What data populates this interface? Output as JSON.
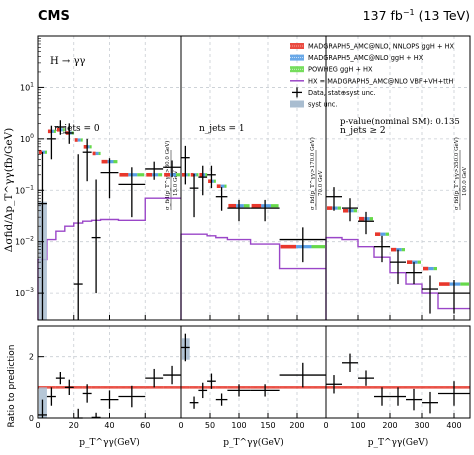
{
  "header": {
    "experiment": "CMS",
    "lumi_text": "137 fb",
    "lumi_exp": "−1",
    "energy_text": " (13 TeV)"
  },
  "process_label": "H → γγ",
  "pvalue_text": "p-value(nominal SM): 0.135",
  "ylabel_top": "Δσfid/Δp_T^γγ(fb/GeV)",
  "ylabel_bottom": "Ratio to prediction",
  "colors": {
    "madgraph_nnlops": "#e8372c",
    "madgraph_ggh": "#5aa0e6",
    "powheg": "#66d94a",
    "hx": "#9a46c8",
    "syst": "#a9bdd0",
    "data": "#000000",
    "grid": "#c8cdd3"
  },
  "legend": [
    {
      "key": "madgraph_nnlops",
      "label": "MADGRAPH5_AMC@NLO, NNLOPS ggH + HX",
      "style": "band"
    },
    {
      "key": "madgraph_ggh",
      "label": "MADGRAPH5_AMC@NLO ggH + HX",
      "style": "band"
    },
    {
      "key": "powheg",
      "label": "POWHEG ggH + HX",
      "style": "band"
    },
    {
      "key": "hx",
      "label": "HX = MADGRAPH5_AMC@NLO VBF+VH+ttH",
      "style": "line"
    },
    {
      "key": "data",
      "label": "Data, stat⊕syst unc.",
      "style": "cross"
    },
    {
      "key": "syst",
      "label": "syst unc.",
      "style": "box"
    }
  ],
  "chart_data": {
    "type": "scatter",
    "title": "",
    "yscale": "log",
    "ylim_top": [
      0.0003,
      100
    ],
    "ylim_ratio": [
      0,
      3
    ],
    "grid": true,
    "legend_position": "top-right",
    "panels": [
      {
        "label_text": "n_jets = 0",
        "xlabel": "p_T^γγ(GeV)",
        "xlim": [
          0,
          80
        ],
        "xticks": [
          0,
          20,
          40,
          60
        ],
        "overflow_label": "σ_fid(p_T^γγ>80.0 GeV)",
        "overflow_sub": "15.0 GeV",
        "bins": [
          [
            0,
            5
          ],
          [
            5,
            10
          ],
          [
            10,
            15
          ],
          [
            15,
            20
          ],
          [
            20,
            25
          ],
          [
            25,
            30
          ],
          [
            30,
            35
          ],
          [
            35,
            45
          ],
          [
            45,
            60
          ],
          [
            60,
            70
          ],
          [
            70,
            80
          ]
        ],
        "data": [
          0.055,
          1.0,
          1.7,
          1.3,
          0.0015,
          0.55,
          0.012,
          0.22,
          0.13,
          0.26,
          0.28
        ],
        "err_up": [
          0.5,
          0.8,
          0.6,
          0.7,
          0.5,
          0.45,
          0.15,
          0.2,
          0.15,
          0.1,
          0.1
        ],
        "err_dn": [
          0.055,
          0.6,
          0.5,
          0.5,
          0.0014,
          0.4,
          0.011,
          0.15,
          0.1,
          0.1,
          0.1
        ],
        "prediction": [
          0.55,
          1.4,
          1.5,
          1.3,
          0.95,
          0.7,
          0.52,
          0.36,
          0.2,
          0.2,
          0.2
        ],
        "hx": [
          0.0045,
          0.011,
          0.016,
          0.02,
          0.023,
          0.025,
          0.026,
          0.027,
          0.026,
          0.07,
          0.07
        ],
        "ratio": [
          0.1,
          0.7,
          1.3,
          1.0,
          0.0,
          0.8,
          0.02,
          0.6,
          0.7,
          1.3,
          1.4
        ],
        "ratio_err": [
          1.0,
          0.6,
          0.4,
          0.5,
          0.6,
          0.6,
          0.3,
          0.6,
          0.7,
          0.6,
          0.6
        ]
      },
      {
        "label_text": "n_jets = 1",
        "xlabel": "p_T^γγ(GeV)",
        "xlim": [
          0,
          250
        ],
        "xticks": [
          0,
          50,
          100,
          150,
          200
        ],
        "overflow_label": "σ_fid(p_T^γγ>170.0 GeV)",
        "overflow_sub": "70.0 GeV",
        "bins": [
          [
            0,
            15
          ],
          [
            15,
            30
          ],
          [
            30,
            45
          ],
          [
            45,
            60
          ],
          [
            60,
            80
          ],
          [
            80,
            120
          ],
          [
            120,
            170
          ],
          [
            170,
            250
          ]
        ],
        "data": [
          0.43,
          0.11,
          0.18,
          0.2,
          0.075,
          0.045,
          0.045,
          0.011
        ],
        "err_up": [
          0.3,
          0.1,
          0.12,
          0.1,
          0.04,
          0.02,
          0.02,
          0.008
        ],
        "err_dn": [
          0.3,
          0.08,
          0.1,
          0.09,
          0.035,
          0.02,
          0.02,
          0.007
        ],
        "prediction": [
          0.2,
          0.2,
          0.2,
          0.15,
          0.12,
          0.05,
          0.05,
          0.008
        ],
        "hx": [
          0.014,
          0.014,
          0.014,
          0.013,
          0.012,
          0.011,
          0.009,
          0.003
        ],
        "ratio": [
          2.3,
          0.5,
          0.9,
          1.2,
          0.6,
          0.9,
          0.9,
          1.4
        ],
        "ratio_err": [
          0.9,
          0.4,
          0.5,
          0.5,
          0.4,
          0.4,
          0.4,
          0.8
        ]
      },
      {
        "label_text": "n_jets ≥ 2",
        "xlabel": "p_T^γγ(GeV)",
        "xlim": [
          0,
          450
        ],
        "xticks": [
          0,
          100,
          200,
          300,
          400
        ],
        "overflow_label": "σ_fid(p_T^γγ>350.0 GeV)",
        "overflow_sub": "100.0 GeV",
        "bins": [
          [
            0,
            50
          ],
          [
            50,
            100
          ],
          [
            100,
            150
          ],
          [
            150,
            200
          ],
          [
            200,
            250
          ],
          [
            250,
            300
          ],
          [
            300,
            350
          ],
          [
            350,
            450
          ]
        ],
        "data": [
          0.075,
          0.045,
          0.025,
          0.008,
          0.004,
          0.0025,
          0.0012,
          0.001
        ],
        "err_up": [
          0.04,
          0.025,
          0.013,
          0.005,
          0.003,
          0.0015,
          0.001,
          0.0008
        ],
        "err_dn": [
          0.035,
          0.02,
          0.011,
          0.004,
          0.0025,
          0.001,
          0.0008,
          0.0006
        ],
        "prediction": [
          0.045,
          0.04,
          0.028,
          0.014,
          0.007,
          0.004,
          0.003,
          0.0015
        ],
        "hx": [
          0.012,
          0.011,
          0.008,
          0.005,
          0.0025,
          0.0015,
          0.001,
          0.0005
        ],
        "ratio": [
          1.1,
          1.8,
          1.3,
          0.7,
          0.7,
          0.6,
          0.5,
          0.8
        ],
        "ratio_err": [
          0.6,
          0.6,
          0.5,
          0.6,
          0.6,
          0.7,
          0.7,
          0.8
        ]
      }
    ]
  }
}
